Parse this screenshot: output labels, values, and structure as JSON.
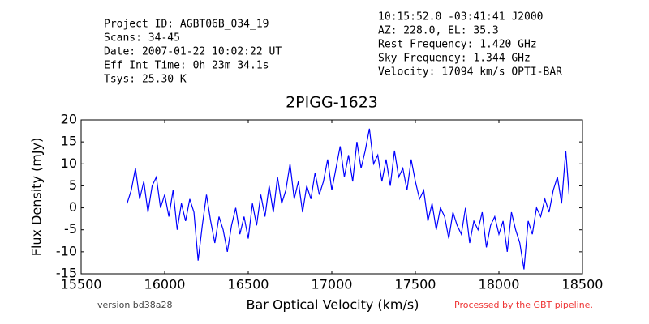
{
  "header": {
    "left": [
      "Project ID: AGBT06B_034_19",
      "Scans: 34-45",
      "Date: 2007-01-22 10:02:22 UT",
      "Eff Int Time: 0h 23m 34.1s",
      "Tsys: 25.30 K"
    ],
    "right": [
      "10:15:52.0 -03:41:41 J2000",
      "AZ: 228.0, EL: 35.3",
      "Rest Frequency:   1.420 GHz",
      "Sky Frequency:    1.344 GHz",
      "Velocity: 17094 km/s OPTI-BAR"
    ]
  },
  "footer": {
    "version": "version bd38a28",
    "pipeline": "Processed by the GBT pipeline."
  },
  "chart_data": {
    "type": "line",
    "title": "2PIGG-1623",
    "x_label": "Bar Optical Velocity (km/s)",
    "y_label": "Flux Density (mJy)",
    "xlim": [
      15500,
      18500
    ],
    "xticks": [
      15500,
      16000,
      16500,
      17000,
      17500,
      18000,
      18500
    ],
    "ylim": [
      -15,
      20
    ],
    "yticks": [
      -15,
      -10,
      -5,
      0,
      5,
      10,
      15,
      20
    ],
    "series": [
      {
        "name": "2PIGG-1623",
        "color": "#0000ff",
        "x": [
          15775,
          15800,
          15825,
          15850,
          15875,
          15900,
          15925,
          15950,
          15975,
          16000,
          16025,
          16050,
          16075,
          16100,
          16125,
          16150,
          16175,
          16200,
          16225,
          16250,
          16275,
          16300,
          16325,
          16350,
          16375,
          16400,
          16425,
          16450,
          16475,
          16500,
          16525,
          16550,
          16575,
          16600,
          16625,
          16650,
          16675,
          16700,
          16725,
          16750,
          16775,
          16800,
          16825,
          16850,
          16875,
          16900,
          16925,
          16950,
          16975,
          17000,
          17025,
          17050,
          17075,
          17100,
          17125,
          17150,
          17175,
          17200,
          17225,
          17250,
          17275,
          17300,
          17325,
          17350,
          17375,
          17400,
          17425,
          17450,
          17475,
          17500,
          17525,
          17550,
          17575,
          17600,
          17625,
          17650,
          17675,
          17700,
          17725,
          17750,
          17775,
          17800,
          17825,
          17850,
          17875,
          17900,
          17925,
          17950,
          17975,
          18000,
          18025,
          18050,
          18075,
          18100,
          18125,
          18150,
          18175,
          18200,
          18225,
          18250,
          18275,
          18300,
          18325,
          18350,
          18375,
          18400,
          18420
        ],
        "values": [
          1,
          4,
          9,
          2,
          6,
          -1,
          5,
          7,
          0,
          3,
          -2,
          4,
          -5,
          1,
          -3,
          2,
          -1,
          -12,
          -4,
          3,
          -3,
          -8,
          -2,
          -5,
          -10,
          -4,
          0,
          -6,
          -2,
          -7,
          1,
          -4,
          3,
          -2,
          5,
          -1,
          7,
          1,
          4,
          10,
          2,
          6,
          -1,
          5,
          2,
          8,
          3,
          6,
          11,
          4,
          9,
          14,
          7,
          12,
          6,
          15,
          9,
          13,
          18,
          10,
          12,
          6,
          11,
          5,
          13,
          7,
          9,
          4,
          11,
          6,
          2,
          4,
          -3,
          1,
          -5,
          0,
          -2,
          -7,
          -1,
          -4,
          -6,
          0,
          -8,
          -3,
          -5,
          -1,
          -9,
          -4,
          -2,
          -6,
          -3,
          -10,
          -1,
          -5,
          -8,
          -14,
          -3,
          -6,
          0,
          -2,
          2,
          -1,
          4,
          7,
          1,
          13,
          3
        ]
      }
    ]
  }
}
